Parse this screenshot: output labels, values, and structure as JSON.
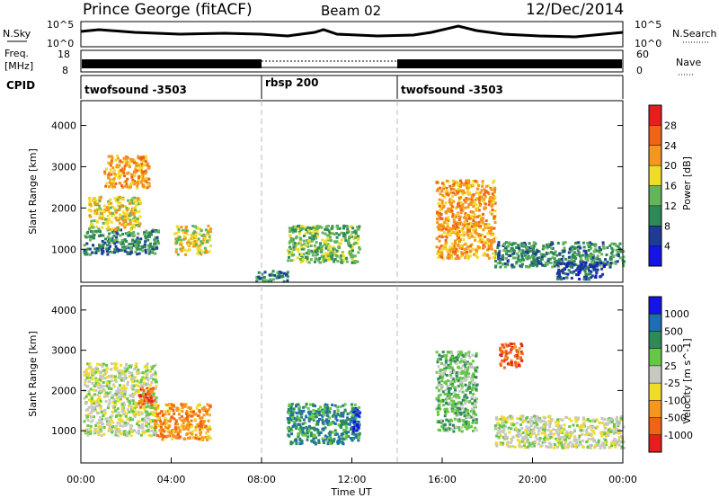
{
  "header": {
    "title": "Prince George (fitACF)",
    "beam": "Beam 02",
    "date": "12/Dec/2014"
  },
  "status_panels": {
    "nsky_label": "N.Sky",
    "nsky_ticks": [
      "10^5",
      "10^0"
    ],
    "nsky_right_ticks": [
      "10^5",
      "10^0"
    ],
    "nsearch_label": "N.Search",
    "freq_label_1": "Freq.",
    "freq_label_2": "[MHz]",
    "freq_ticks": [
      "18",
      "8"
    ],
    "nave_ticks": [
      "60",
      "0"
    ],
    "nave_label": "Nave",
    "cpid_label": "CPID",
    "cpid_segments": [
      {
        "name": "twofsound -3503",
        "start_h": 0,
        "end_h": 8
      },
      {
        "name": "rbsp 200",
        "start_h": 8,
        "end_h": 14
      },
      {
        "name": "twofsound -3503",
        "start_h": 14,
        "end_h": 24
      }
    ]
  },
  "chart_data": [
    {
      "type": "heatmap",
      "panel": "power",
      "ylabel": "Slant Range [km]",
      "xlim_hours": [
        0,
        24
      ],
      "ylim": [
        200,
        4600
      ],
      "yticks": [
        1000,
        2000,
        3000,
        4000
      ],
      "colorbar_label": "Power [dB]",
      "colorbar_ticks": [
        "28",
        "24",
        "20",
        "16",
        "12",
        "8",
        "4"
      ],
      "colorbar_colors": [
        "#e61e1e",
        "#f06418",
        "#f5961e",
        "#f0dc28",
        "#64b45a",
        "#2e8b57",
        "#1e3c96",
        "#1414e6"
      ],
      "regions": [
        {
          "t0": 0.1,
          "t1": 3.4,
          "r0": 900,
          "r1": 1500,
          "level": 5
        },
        {
          "t0": 0.3,
          "t1": 2.6,
          "r0": 1500,
          "r1": 2300,
          "level": 3
        },
        {
          "t0": 1.0,
          "t1": 3.0,
          "r0": 2500,
          "r1": 3300,
          "level": 2
        },
        {
          "t0": 4.1,
          "t1": 5.7,
          "r0": 900,
          "r1": 1600,
          "level": 3
        },
        {
          "t0": 9.1,
          "t1": 12.3,
          "r0": 700,
          "r1": 1600,
          "level": 4
        },
        {
          "t0": 7.7,
          "t1": 9.2,
          "r0": 250,
          "r1": 500,
          "level": 5
        },
        {
          "t0": 15.7,
          "t1": 18.3,
          "r0": 800,
          "r1": 2700,
          "level": 2
        },
        {
          "t0": 18.3,
          "t1": 24.0,
          "r0": 600,
          "r1": 1200,
          "level": 5
        },
        {
          "t0": 21.0,
          "t1": 23.2,
          "r0": 300,
          "r1": 700,
          "level": 6
        }
      ]
    },
    {
      "type": "heatmap",
      "panel": "velocity",
      "ylabel": "Slant Range [km]",
      "xlabel": "Time UT",
      "xlim_hours": [
        0,
        24
      ],
      "ylim": [
        200,
        4600
      ],
      "yticks": [
        1000,
        2000,
        3000,
        4000
      ],
      "xticks": [
        "00:00",
        "04:00",
        "08:00",
        "12:00",
        "16:00",
        "20:00",
        "00:00"
      ],
      "colorbar_label": "Velocity [m s^-1]",
      "colorbar_ticks": [
        "1000",
        "500",
        "100",
        "25",
        "-25",
        "-100",
        "-500",
        "-1000"
      ],
      "colorbar_colors": [
        "#1414e6",
        "#1e6eb4",
        "#2e8b57",
        "#64c846",
        "#c8c8c3",
        "#f0dc28",
        "#f5961e",
        "#f06418",
        "#e61e1e"
      ],
      "regions": [
        {
          "t0": 0.1,
          "t1": 3.3,
          "r0": 900,
          "r1": 2700,
          "level": 4
        },
        {
          "t0": 3.2,
          "t1": 5.7,
          "r0": 800,
          "r1": 1700,
          "level": 6
        },
        {
          "t0": 2.5,
          "t1": 3.2,
          "r0": 1600,
          "r1": 2100,
          "level": 7
        },
        {
          "t0": 9.1,
          "t1": 12.3,
          "r0": 700,
          "r1": 1700,
          "level": 2
        },
        {
          "t0": 12.0,
          "t1": 12.3,
          "r0": 1000,
          "r1": 1600,
          "level": 0
        },
        {
          "t0": 15.7,
          "t1": 17.5,
          "r0": 1000,
          "r1": 3000,
          "level": 3
        },
        {
          "t0": 18.3,
          "t1": 24.0,
          "r0": 600,
          "r1": 1400,
          "level": 4
        },
        {
          "t0": 18.5,
          "t1": 19.5,
          "r0": 2600,
          "r1": 3200,
          "level": 7
        }
      ]
    }
  ]
}
